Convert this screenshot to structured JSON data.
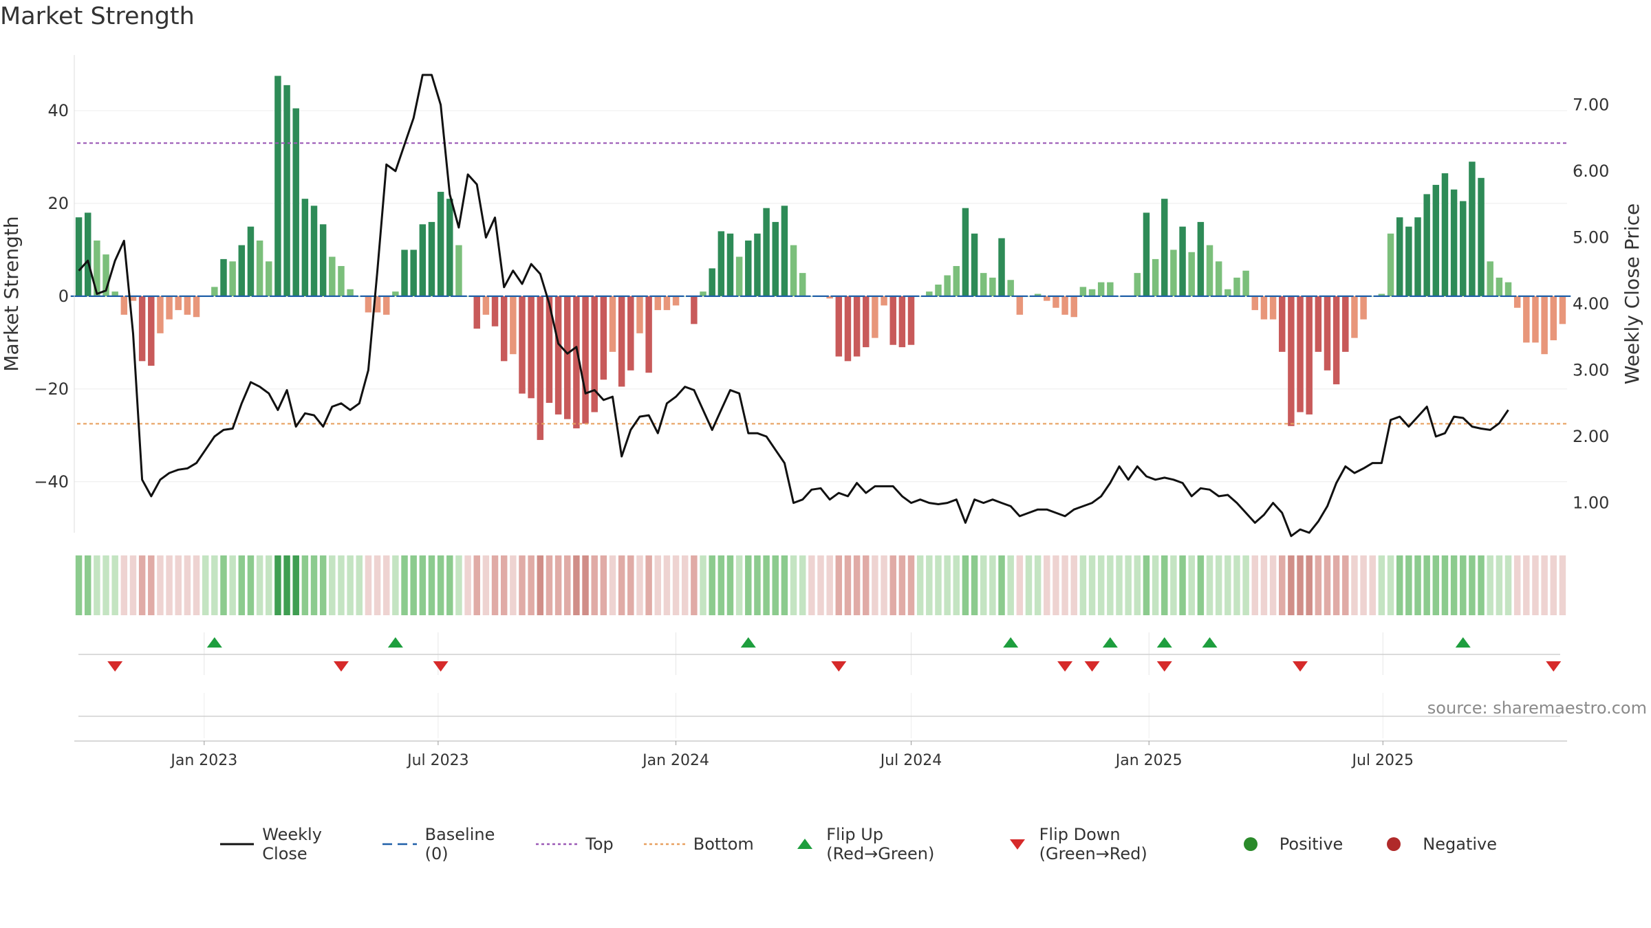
{
  "title": "Market Strength",
  "source": "source: sharemaestro.com",
  "colors": {
    "strong_green": "#2e8b57",
    "light_green": "#7bbf7b",
    "strong_red": "#c85a5a",
    "light_red": "#e8967a",
    "price_line": "#111111",
    "baseline": "#1f5fa8",
    "top_line": "#9b59b6",
    "bottom_line": "#e8a060",
    "flip_up": "#1e9e3e",
    "flip_down": "#d62a2a",
    "positive": "#2a8a2a",
    "negative": "#b02a2a"
  },
  "legend": {
    "items": [
      {
        "label": "Weekly Close",
        "symbol": "solid-line",
        "color": "#111111"
      },
      {
        "label": "Baseline (0)",
        "symbol": "dashed-line",
        "color": "#1f5fa8"
      },
      {
        "label": "Top",
        "symbol": "dotted-line",
        "color": "#9b59b6"
      },
      {
        "label": "Bottom",
        "symbol": "dotted-line",
        "color": "#e8a060"
      },
      {
        "label": "Flip Up (Red→Green)",
        "symbol": "triangle-up",
        "color": "#1e9e3e"
      },
      {
        "label": "Flip Down (Green→Red)",
        "symbol": "triangle-down",
        "color": "#d62a2a"
      },
      {
        "label": "Positive",
        "symbol": "circle",
        "color": "#2a8a2a"
      },
      {
        "label": "Negative",
        "symbol": "circle",
        "color": "#b02a2a"
      }
    ]
  },
  "chart_data": {
    "type": "bar",
    "title": "Market Strength",
    "ylabel": "Market Strength",
    "y2label": "Weekly Close Price",
    "ylim": [
      -51,
      52
    ],
    "y_ticks": [
      40,
      20,
      0,
      -20,
      -40
    ],
    "y_tick_labels": [
      "40",
      "20",
      "0",
      "−20",
      "−40"
    ],
    "y2lim": [
      0.55,
      7.75
    ],
    "y2_ticks": [
      7.0,
      6.0,
      5.0,
      4.0,
      3.0,
      2.0,
      1.0
    ],
    "y2_tick_labels": [
      "7.00",
      "6.00",
      "5.00",
      "4.00",
      "3.00",
      "2.00",
      "1.00"
    ],
    "x_start": "2022-09-26",
    "x_step_days": 7,
    "x_ticks": [
      "2023-01-01",
      "2023-07-01",
      "2024-01-01",
      "2024-07-01",
      "2025-01-01",
      "2025-07-01"
    ],
    "x_tick_labels": [
      "Jan 2023",
      "Jul 2023",
      "Jan 2024",
      "Jul 2024",
      "Jan 2025",
      "Jul 2025"
    ],
    "top_level": 33,
    "bottom_level": -27.5,
    "baseline": 0,
    "series": [
      {
        "name": "Market Strength",
        "values": [
          17,
          18,
          12,
          9,
          1,
          -4,
          -1,
          -14,
          -15,
          -8,
          -5,
          -3,
          -4,
          -4.5,
          0,
          2,
          8,
          7.5,
          11,
          15,
          12,
          7.5,
          47.5,
          45.5,
          40.5,
          21,
          19.5,
          15.5,
          8.5,
          6.5,
          1.5,
          0,
          -3.5,
          -3.5,
          -4,
          1,
          10,
          10,
          15.5,
          16,
          22.5,
          21,
          11,
          0,
          -7,
          -4,
          -6.5,
          -14,
          -12.5,
          -21,
          -22,
          -31,
          -23,
          -25.5,
          -26.5,
          -28.5,
          -27.5,
          -25,
          -18,
          -12,
          -19.5,
          -16,
          -8,
          -16.5,
          -3,
          -3,
          -2,
          0,
          -6,
          1,
          6,
          14,
          13.5,
          8.5,
          12,
          13.5,
          19,
          16,
          19.5,
          11,
          5,
          0,
          0,
          -0.5,
          -13,
          -14,
          -13,
          -11,
          -9,
          -2,
          -10.5,
          -11,
          -10.5,
          0,
          1,
          2.5,
          4.5,
          6.5,
          19,
          13.5,
          5,
          4,
          12.5,
          3.5,
          -4,
          0,
          0.5,
          -1,
          -2.5,
          -4,
          -4.5,
          2,
          1.5,
          3,
          3,
          0,
          0,
          5,
          18,
          8,
          21,
          10,
          15,
          9.5,
          16,
          11,
          7.5,
          1.5,
          4,
          5.5,
          -3,
          -5,
          -5,
          -12,
          -28,
          -25,
          -25.5,
          -12,
          -16,
          -19,
          -12,
          -9,
          -5,
          0,
          0.5,
          13.5,
          17,
          15,
          17,
          22,
          24,
          26.5,
          23,
          20.5,
          29,
          25.5,
          7.5,
          4,
          3,
          -2.5,
          -10,
          -10,
          -12.5,
          -9.5,
          -6
        ],
        "strength_levels": [
          2,
          2,
          1,
          1,
          1,
          -1,
          -1,
          -2,
          -2,
          -1,
          -1,
          -1,
          -1,
          -1,
          1,
          1,
          2,
          1,
          2,
          2,
          1,
          1,
          3,
          3,
          3,
          2,
          2,
          2,
          1,
          1,
          1,
          1,
          -1,
          -1,
          -1,
          1,
          2,
          2,
          2,
          2,
          2,
          2,
          1,
          -1,
          -2,
          -1,
          -2,
          -2,
          -1,
          -2,
          -2,
          -3,
          -2,
          -2,
          -2,
          -3,
          -3,
          -2,
          -2,
          -1,
          -2,
          -2,
          -1,
          -2,
          -1,
          -1,
          -1,
          -1,
          -2,
          1,
          2,
          2,
          2,
          1,
          2,
          2,
          2,
          2,
          2,
          1,
          1,
          -1,
          -1,
          -1,
          -2,
          -2,
          -2,
          -2,
          -1,
          -1,
          -2,
          -2,
          -2,
          1,
          1,
          1,
          1,
          1,
          2,
          2,
          1,
          1,
          2,
          1,
          -1,
          1,
          1,
          -1,
          -1,
          -1,
          -1,
          1,
          1,
          1,
          1,
          1,
          1,
          1,
          2,
          1,
          2,
          1,
          2,
          1,
          2,
          1,
          1,
          1,
          1,
          1,
          -1,
          -1,
          -1,
          -2,
          -3,
          -3,
          -3,
          -2,
          -2,
          -2,
          -2,
          -1,
          -1,
          -1,
          1,
          1,
          2,
          2,
          2,
          2,
          2,
          2,
          2,
          2,
          2,
          2,
          1,
          1,
          1,
          -1,
          -1,
          -1,
          -1,
          -1,
          -1
        ]
      },
      {
        "name": "Weekly Close",
        "axis": "right",
        "values": [
          4.5,
          4.65,
          4.15,
          4.2,
          4.65,
          4.95,
          3.55,
          1.35,
          1.1,
          1.35,
          1.45,
          1.5,
          1.52,
          1.6,
          1.8,
          2.0,
          2.1,
          2.12,
          2.5,
          2.82,
          2.75,
          2.65,
          2.4,
          2.7,
          2.15,
          2.35,
          2.32,
          2.15,
          2.45,
          2.5,
          2.4,
          2.5,
          3.0,
          4.5,
          6.1,
          6.0,
          6.4,
          6.8,
          7.45,
          7.45,
          7.0,
          5.65,
          5.15,
          5.95,
          5.8,
          5.0,
          5.3,
          4.25,
          4.5,
          4.3,
          4.6,
          4.45,
          4.0,
          3.4,
          3.25,
          3.35,
          2.65,
          2.7,
          2.55,
          2.6,
          1.7,
          2.1,
          2.3,
          2.32,
          2.05,
          2.5,
          2.6,
          2.75,
          2.7,
          2.4,
          2.1,
          2.4,
          2.7,
          2.65,
          2.05,
          2.05,
          2.0,
          1.8,
          1.6,
          1.0,
          1.05,
          1.2,
          1.22,
          1.05,
          1.15,
          1.1,
          1.3,
          1.15,
          1.25,
          1.25,
          1.25,
          1.1,
          1.0,
          1.05,
          1.0,
          0.98,
          1.0,
          1.05,
          0.7,
          1.05,
          1.0,
          1.05,
          1.0,
          0.95,
          0.8,
          0.85,
          0.9,
          0.9,
          0.85,
          0.8,
          0.9,
          0.95,
          1.0,
          1.1,
          1.3,
          1.55,
          1.35,
          1.55,
          1.4,
          1.35,
          1.38,
          1.35,
          1.3,
          1.1,
          1.22,
          1.2,
          1.1,
          1.12,
          1.0,
          0.85,
          0.7,
          0.82,
          1.0,
          0.85,
          0.5,
          0.6,
          0.55,
          0.72,
          0.95,
          1.3,
          1.55,
          1.45,
          1.52,
          1.6,
          1.6,
          2.25,
          2.3,
          2.15,
          2.3,
          2.45,
          2.0,
          2.05,
          2.3,
          2.28,
          2.15,
          2.12,
          2.1,
          2.2,
          2.4
        ]
      }
    ],
    "flip_up_indices": [
      15,
      35,
      74,
      103,
      114,
      120,
      125,
      153
    ],
    "flip_down_indices": [
      4,
      29,
      40,
      84,
      109,
      112,
      120,
      135,
      163
    ]
  }
}
